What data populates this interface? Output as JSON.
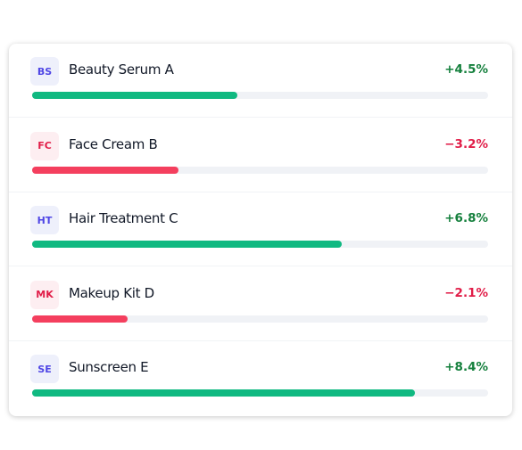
{
  "items": [
    {
      "badge": "BS",
      "name": "Beauty Serum A",
      "change": "+4.5%",
      "progress": 45,
      "color": "#10b981",
      "badge_color": "#4f46e5",
      "badge_bg": "#eef0fb",
      "change_color": "#15803d"
    },
    {
      "badge": "FC",
      "name": "Face Cream B",
      "change": "−3.2%",
      "progress": 32,
      "color": "#f43f5e",
      "badge_color": "#e11d48",
      "badge_bg": "#fdeef1",
      "change_color": "#e11d48"
    },
    {
      "badge": "HT",
      "name": "Hair Treatment C",
      "change": "+6.8%",
      "progress": 68,
      "color": "#10b981",
      "badge_color": "#4f46e5",
      "badge_bg": "#eef0fb",
      "change_color": "#15803d"
    },
    {
      "badge": "MK",
      "name": "Makeup Kit D",
      "change": "−2.1%",
      "progress": 21,
      "color": "#f43f5e",
      "badge_color": "#e11d48",
      "badge_bg": "#fdeef1",
      "change_color": "#e11d48"
    },
    {
      "badge": "SE",
      "name": "Sunscreen E",
      "change": "+8.4%",
      "progress": 84,
      "color": "#10b981",
      "badge_color": "#4f46e5",
      "badge_bg": "#eef0fb",
      "change_color": "#15803d"
    }
  ]
}
